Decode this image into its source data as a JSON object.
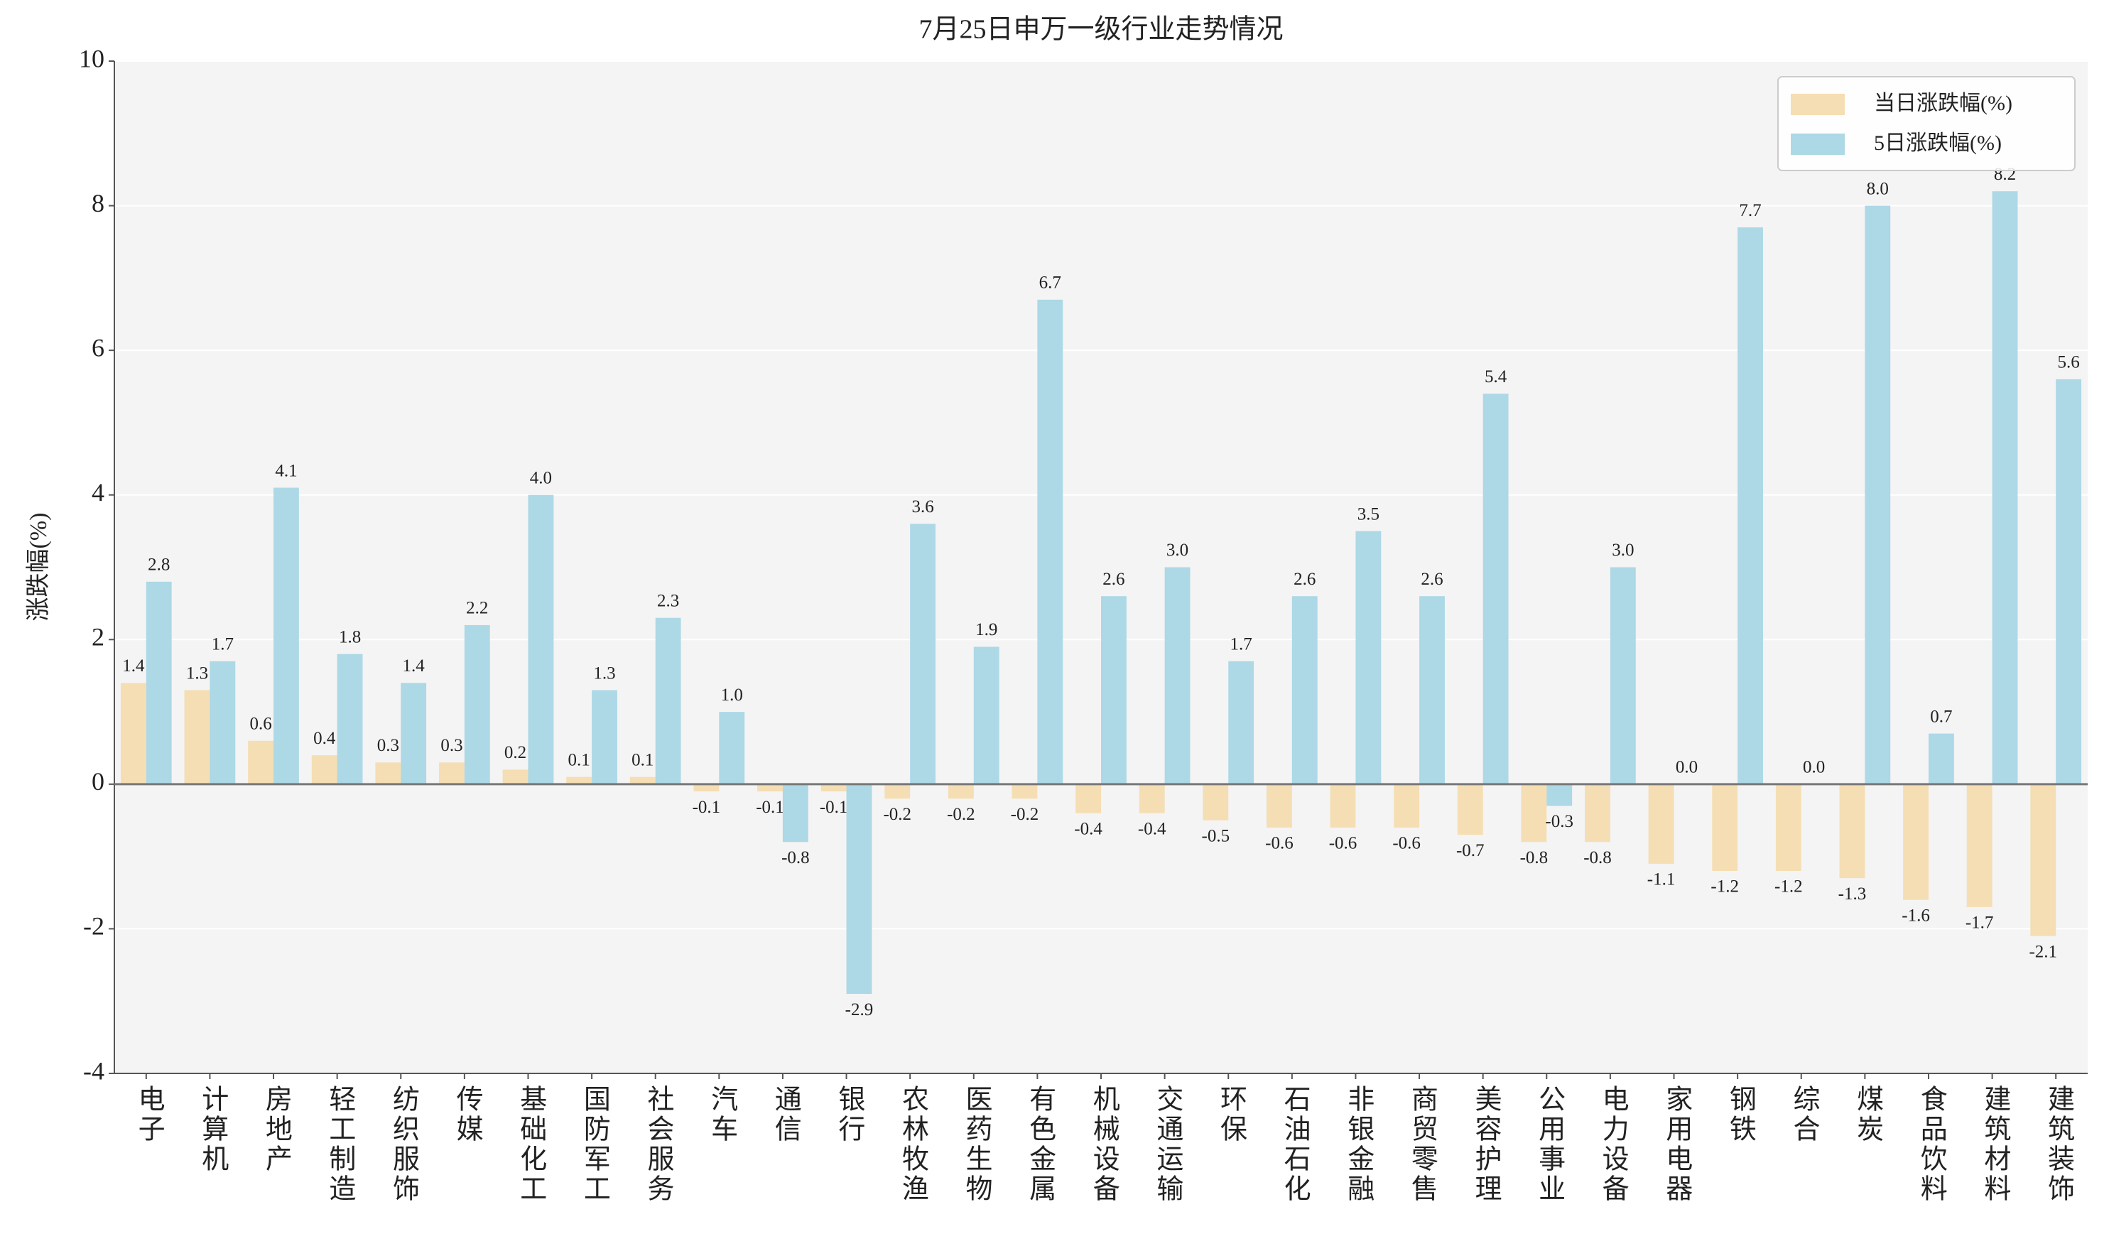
{
  "chart_data": {
    "type": "bar",
    "title": "7月25日申万一级行业走势情况",
    "y_label": "涨跌幅(%)",
    "categories": [
      "电子",
      "计算机",
      "房地产",
      "轻工制造",
      "纺织服饰",
      "传媒",
      "基础化工",
      "国防军工",
      "社会服务",
      "汽车",
      "通信",
      "银行",
      "农林牧渔",
      "医药生物",
      "有色金属",
      "机械设备",
      "交通运输",
      "环保",
      "石油石化",
      "非银金融",
      "商贸零售",
      "美容护理",
      "公用事业",
      "电力设备",
      "家用电器",
      "钢铁",
      "综合",
      "煤炭",
      "食品饮料",
      "建筑材料",
      "建筑装饰"
    ],
    "series": [
      {
        "name": "当日涨跌幅(%)",
        "color": "#f5deb3",
        "values": [
          1.4,
          1.3,
          0.6,
          0.4,
          0.3,
          0.3,
          0.2,
          0.1,
          0.1,
          -0.1,
          -0.1,
          -0.1,
          -0.2,
          -0.2,
          -0.2,
          -0.4,
          -0.4,
          -0.5,
          -0.6,
          -0.6,
          -0.6,
          -0.7,
          -0.8,
          -0.8,
          -1.1,
          -1.2,
          -1.2,
          -1.3,
          -1.6,
          -1.7,
          -2.1
        ],
        "value_labels": [
          "1.4",
          "1.3",
          "0.6",
          "0.4",
          "0.3",
          "0.3",
          "0.2",
          "0.1",
          "0.1",
          "-0.1",
          "-0.1",
          "-0.1",
          "-0.2",
          "-0.2",
          "-0.2",
          "-0.4",
          "-0.4",
          "-0.5",
          "-0.6",
          "-0.6",
          "-0.6",
          "-0.7",
          "-0.8",
          "-0.8",
          "-1.1",
          "-1.2",
          "-1.2",
          "-1.3",
          "-1.6",
          "-1.7",
          "-2.1"
        ]
      },
      {
        "name": "5日涨跌幅(%)",
        "color": "#add8e6",
        "values": [
          2.8,
          1.7,
          4.1,
          1.8,
          1.4,
          2.2,
          4.0,
          1.3,
          2.3,
          1.0,
          -0.8,
          -2.9,
          3.6,
          1.9,
          6.7,
          2.6,
          3.0,
          1.7,
          2.6,
          3.5,
          2.6,
          5.4,
          -0.3,
          3.0,
          0.0,
          7.7,
          0.0,
          8.0,
          0.7,
          8.2,
          5.6
        ],
        "value_labels": [
          "2.8",
          "1.7",
          "4.1",
          "1.8",
          "1.4",
          "2.2",
          "4.0",
          "1.3",
          "2.3",
          "1.0",
          "-0.8",
          "-2.9",
          "3.6",
          "1.9",
          "6.7",
          "2.6",
          "3.0",
          "1.7",
          "2.6",
          "3.5",
          "2.6",
          "5.4",
          "-0.3",
          "3.0",
          "0.0",
          "7.7",
          "0.0",
          "8.0",
          "0.7",
          "8.2",
          "5.6"
        ]
      }
    ],
    "ylim": [
      -4,
      10
    ],
    "yticks": [
      -4,
      -2,
      0,
      2,
      4,
      6,
      8,
      10
    ],
    "grid": true,
    "legend": "upper right"
  }
}
